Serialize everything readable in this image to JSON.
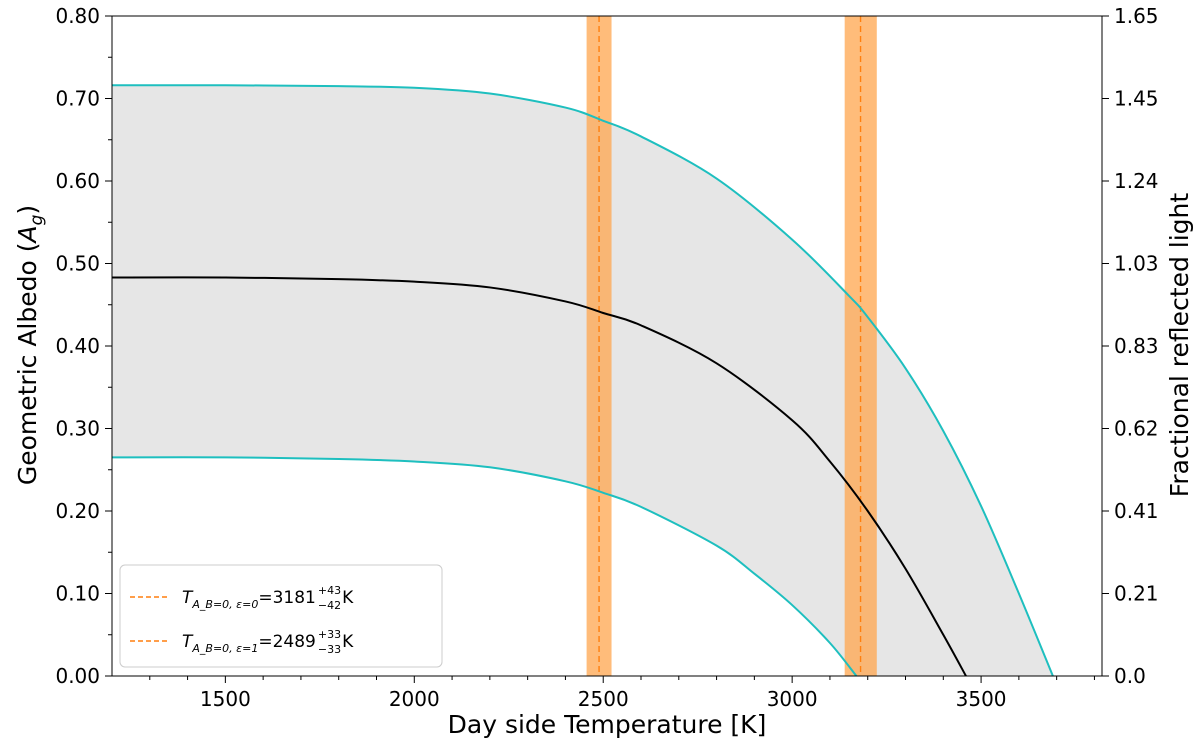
{
  "chart_data": {
    "type": "line",
    "xlabel": "Day side Temperature [K]",
    "ylabel_left": "Geometric Albedo (A_g)",
    "ylabel_right": "Fractional reflected light",
    "xlim": [
      1200,
      3820
    ],
    "ylim_left": [
      0.0,
      0.8
    ],
    "ylim_right": [
      0.0,
      1.65
    ],
    "x_ticks": [
      "1500",
      "2000",
      "2500",
      "3000",
      "3500"
    ],
    "y_ticks_left": [
      "0.00",
      "0.10",
      "0.20",
      "0.30",
      "0.40",
      "0.50",
      "0.60",
      "0.70",
      "0.80"
    ],
    "y_ticks_right": [
      "0.0",
      "0.21",
      "0.41",
      "0.62",
      "0.83",
      "1.03",
      "1.24",
      "1.45",
      "1.65"
    ],
    "grid": false,
    "legend_position": "lower-left",
    "colors": {
      "shade": "#e6e6e6",
      "bound": "#1ebfbf",
      "median": "#000000",
      "band": "#ffa64d",
      "band_opacity": 0.75,
      "marker_line": "#ff7f0e"
    },
    "series": [
      {
        "role": "upper-bound",
        "x": [
          1200,
          1500,
          1800,
          2000,
          2200,
          2400,
          2500,
          2600,
          2800,
          3000,
          3150,
          3200,
          3300,
          3400,
          3500,
          3600,
          3690
        ],
        "y": [
          0.716,
          0.716,
          0.715,
          0.713,
          0.706,
          0.689,
          0.673,
          0.654,
          0.603,
          0.529,
          0.461,
          0.435,
          0.373,
          0.297,
          0.206,
          0.1,
          0.0
        ]
      },
      {
        "role": "median",
        "x": [
          1200,
          1500,
          1800,
          2000,
          2200,
          2400,
          2500,
          2600,
          2800,
          3000,
          3100,
          3200,
          3300,
          3400,
          3460
        ],
        "y": [
          0.483,
          0.483,
          0.481,
          0.478,
          0.471,
          0.454,
          0.44,
          0.425,
          0.379,
          0.31,
          0.26,
          0.2,
          0.13,
          0.05,
          0.0
        ]
      },
      {
        "role": "lower-bound",
        "x": [
          1200,
          1500,
          1800,
          2000,
          2200,
          2400,
          2500,
          2600,
          2800,
          2900,
          3000,
          3100,
          3170
        ],
        "y": [
          0.265,
          0.265,
          0.263,
          0.26,
          0.253,
          0.236,
          0.222,
          0.205,
          0.158,
          0.124,
          0.086,
          0.04,
          0.0
        ]
      }
    ],
    "vertical_bands": [
      {
        "center": 3181,
        "plus": 43,
        "minus": 42
      },
      {
        "center": 2489,
        "plus": 33,
        "minus": 33
      }
    ],
    "legend": [
      {
        "symbol": "T",
        "subscript": "A_B=0, ε=0",
        "text": "=3181",
        "sup": "+43",
        "sub": "−42",
        "unit": " K"
      },
      {
        "symbol": "T",
        "subscript": "A_B=0, ε=1",
        "text": "=2489",
        "sup": "+33",
        "sub": "−33",
        "unit": " K"
      }
    ]
  }
}
